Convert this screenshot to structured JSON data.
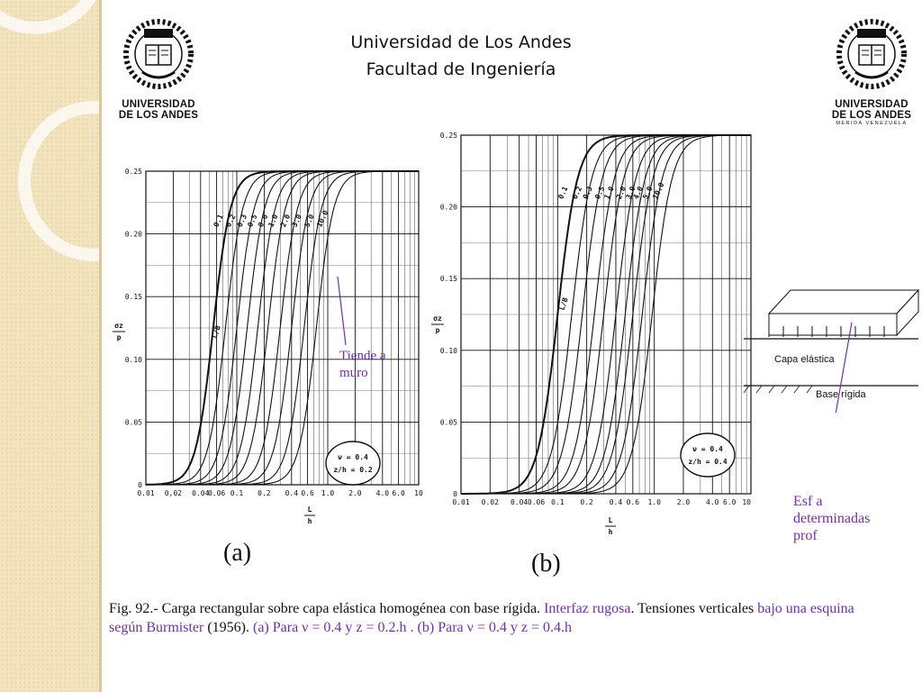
{
  "header": {
    "line1": "Universidad de Los Andes",
    "line2": "Facultad de Ingeniería"
  },
  "logo_left": {
    "wordmark_1": "UNIVERSIDAD",
    "wordmark_2": "DE LOS ANDES"
  },
  "logo_right": {
    "wordmark_1": "UNIVERSIDAD",
    "wordmark_2": "DE LOS ANDES",
    "tagline": "MERIDA VENEZUELA"
  },
  "colors": {
    "accent": "#7030a0",
    "stripe": "#f3e4c0",
    "text": "#111111"
  },
  "chart_data": [
    {
      "id": "a",
      "type": "line",
      "ylabel": "σz / p",
      "xlabel": "L / h",
      "x_scale": "log",
      "xlim": [
        0.01,
        10
      ],
      "ylim": [
        0,
        0.25
      ],
      "x_tick_labels": [
        "0.01",
        "0,02",
        "0.04",
        "0.06",
        "0.1",
        "0.2",
        "0.4",
        "0.6",
        "1.0",
        "2.0",
        "4.0",
        "6.0",
        "10"
      ],
      "y_tick_labels": [
        "0",
        "0.05",
        "0.10",
        "0.15",
        "0.20",
        "0.25"
      ],
      "curve_labels": [
        "0.1",
        "0.2",
        "0.3",
        "0.5",
        "0.6",
        "1.0",
        "2.0",
        "3.0",
        "5.0",
        "10.0"
      ],
      "param_label": "L/B",
      "legend": {
        "line1": "ν = 0.4",
        "line2": "z/h = 0.2"
      },
      "panel_label": "(a)",
      "annotation": {
        "line1": "Tiende a",
        "line2": "muro"
      },
      "series": [
        {
          "name": "0.1",
          "mid": 0.055,
          "steep": 2.4
        },
        {
          "name": "0.2",
          "mid": 0.075,
          "steep": 2.4
        },
        {
          "name": "0.3",
          "mid": 0.1,
          "steep": 2.4
        },
        {
          "name": "0.5",
          "mid": 0.13,
          "steep": 2.4
        },
        {
          "name": "0.6",
          "mid": 0.17,
          "steep": 2.4
        },
        {
          "name": "1.0",
          "mid": 0.22,
          "steep": 2.4
        },
        {
          "name": "2.0",
          "mid": 0.3,
          "steep": 2.4
        },
        {
          "name": "3.0",
          "mid": 0.4,
          "steep": 2.4
        },
        {
          "name": "5.0",
          "mid": 0.55,
          "steep": 2.4
        },
        {
          "name": "10.0",
          "mid": 0.75,
          "steep": 2.4
        }
      ]
    },
    {
      "id": "b",
      "type": "line",
      "ylabel": "σz / p",
      "xlabel": "L / h",
      "x_scale": "log",
      "xlim": [
        0.01,
        10
      ],
      "ylim": [
        0,
        0.25
      ],
      "x_tick_labels": [
        "0.01",
        "0.02",
        "0.04",
        "0.06",
        "0.1",
        "0.2",
        "0.4",
        "0.6",
        "1.0",
        "2.0",
        "4.0",
        "6.0",
        "10.0"
      ],
      "y_tick_labels": [
        "0",
        "0.05",
        "0.10",
        "0.15",
        "0.20",
        "0.25"
      ],
      "curve_labels": [
        "0.1",
        "0.2",
        "0.3",
        "0.5",
        "1.0",
        "2.0",
        "3.0",
        "4.0",
        "5.0",
        "10.0"
      ],
      "param_label": "L/B",
      "legend": {
        "line1": "ν = 0.4",
        "line2": "z/h = 0.4"
      },
      "panel_label": "(b)",
      "series": [
        {
          "name": "0.1",
          "mid": 0.1,
          "steep": 2.2
        },
        {
          "name": "0.2",
          "mid": 0.14,
          "steep": 2.2
        },
        {
          "name": "0.3",
          "mid": 0.18,
          "steep": 2.2
        },
        {
          "name": "0.5",
          "mid": 0.24,
          "steep": 2.2
        },
        {
          "name": "1.0",
          "mid": 0.3,
          "steep": 2.2
        },
        {
          "name": "2.0",
          "mid": 0.4,
          "steep": 2.2
        },
        {
          "name": "3.0",
          "mid": 0.5,
          "steep": 2.2
        },
        {
          "name": "4.0",
          "mid": 0.6,
          "steep": 2.2
        },
        {
          "name": "5.0",
          "mid": 0.75,
          "steep": 2.2
        },
        {
          "name": "10.0",
          "mid": 0.95,
          "steep": 2.2
        }
      ]
    }
  ],
  "diagram": {
    "layer_label": "Capa elástica",
    "base_label": "Base rígida",
    "annotation": {
      "line1": "Esf  a",
      "line2": "determinadas",
      "line3": "prof"
    }
  },
  "caption": {
    "p1": "Fig. 92.- Carga rectangular sobre capa elástica homogénea con base rígida. ",
    "p2": "Interfaz rugosa",
    "p3": ". Tensiones verticales ",
    "p4": "bajo una esquina según Burmister",
    "p5": " (1956). ",
    "p6": "(a) Para ν = 0.4 y z = 0.2.h . (b) Para ν = 0.4 y z = 0.4.h"
  }
}
